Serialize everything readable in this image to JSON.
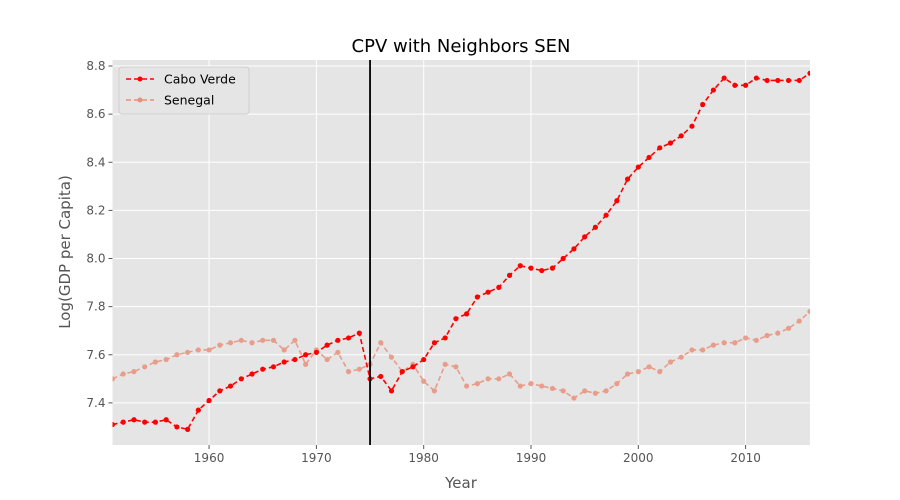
{
  "chart_data": {
    "type": "line",
    "title": "CPV with Neighbors SEN",
    "xlabel": "Year",
    "ylabel": "Log(GDP per Capita)",
    "xlim": [
      1951,
      2016
    ],
    "ylim": [
      7.225,
      8.825
    ],
    "xticks": [
      1960,
      1970,
      1980,
      1990,
      2000,
      2010
    ],
    "yticks": [
      7.4,
      7.6,
      7.8,
      8.0,
      8.2,
      8.4,
      8.6,
      8.8
    ],
    "grid": true,
    "legend_position": "top-left",
    "vline_x": 1975,
    "x": [
      1951,
      1952,
      1953,
      1954,
      1955,
      1956,
      1957,
      1958,
      1959,
      1960,
      1961,
      1962,
      1963,
      1964,
      1965,
      1966,
      1967,
      1968,
      1969,
      1970,
      1971,
      1972,
      1973,
      1974,
      1975,
      1976,
      1977,
      1978,
      1979,
      1980,
      1981,
      1982,
      1983,
      1984,
      1985,
      1986,
      1987,
      1988,
      1989,
      1990,
      1991,
      1992,
      1993,
      1994,
      1995,
      1996,
      1997,
      1998,
      1999,
      2000,
      2001,
      2002,
      2003,
      2004,
      2005,
      2006,
      2007,
      2008,
      2009,
      2010,
      2011,
      2012,
      2013,
      2014,
      2015,
      2016
    ],
    "series": [
      {
        "name": "Cabo Verde",
        "color": "#ff0000",
        "values": [
          7.31,
          7.32,
          7.33,
          7.32,
          7.32,
          7.33,
          7.3,
          7.29,
          7.37,
          7.41,
          7.45,
          7.47,
          7.5,
          7.52,
          7.54,
          7.55,
          7.57,
          7.58,
          7.6,
          7.61,
          7.64,
          7.66,
          7.67,
          7.69,
          7.5,
          7.51,
          7.45,
          7.53,
          7.55,
          7.58,
          7.65,
          7.67,
          7.75,
          7.77,
          7.84,
          7.86,
          7.88,
          7.93,
          7.97,
          7.96,
          7.95,
          7.96,
          8.0,
          8.04,
          8.09,
          8.13,
          8.18,
          8.24,
          8.33,
          8.38,
          8.42,
          8.46,
          8.48,
          8.51,
          8.55,
          8.64,
          8.7,
          8.75,
          8.72,
          8.72,
          8.75,
          8.74,
          8.74,
          8.74,
          8.74,
          8.77
        ]
      },
      {
        "name": "Senegal",
        "color": "#e8917a",
        "values": [
          7.5,
          7.52,
          7.53,
          7.55,
          7.57,
          7.58,
          7.6,
          7.61,
          7.62,
          7.62,
          7.64,
          7.65,
          7.66,
          7.65,
          7.66,
          7.66,
          7.62,
          7.66,
          7.56,
          7.62,
          7.58,
          7.61,
          7.53,
          7.54,
          7.56,
          7.65,
          7.59,
          7.53,
          7.56,
          7.49,
          7.45,
          7.56,
          7.55,
          7.47,
          7.48,
          7.5,
          7.5,
          7.52,
          7.47,
          7.48,
          7.47,
          7.46,
          7.45,
          7.42,
          7.45,
          7.44,
          7.45,
          7.48,
          7.52,
          7.53,
          7.55,
          7.53,
          7.57,
          7.59,
          7.62,
          7.62,
          7.64,
          7.65,
          7.65,
          7.67,
          7.66,
          7.68,
          7.69,
          7.71,
          7.74,
          7.78
        ]
      }
    ]
  }
}
